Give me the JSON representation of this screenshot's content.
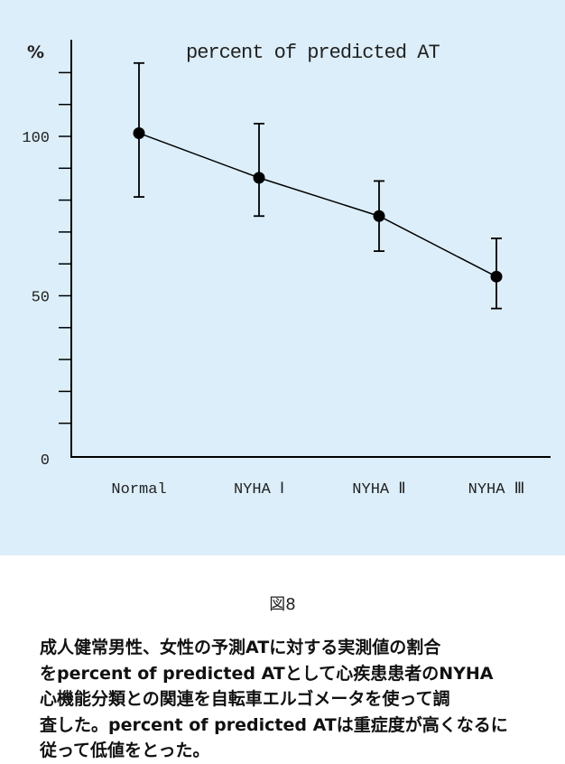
{
  "chart_data": {
    "type": "line",
    "title": "percent of predicted AT",
    "unit_label": "%",
    "categories": [
      "Normal",
      "NYHA Ⅰ",
      "NYHA Ⅱ",
      "NYHA Ⅲ"
    ],
    "values": [
      101,
      87,
      75,
      56
    ],
    "error_upper": [
      123,
      104,
      86,
      68
    ],
    "error_lower": [
      81,
      75,
      64,
      46
    ],
    "ylim": [
      0,
      130
    ],
    "yticks": [
      0,
      50,
      100
    ],
    "ytick_labels": [
      "0",
      "50",
      "100"
    ],
    "minor_ticks": [
      10,
      20,
      30,
      40,
      60,
      70,
      80,
      90,
      110,
      120
    ],
    "grid": false,
    "legend": "none",
    "colors": {
      "background": "#dbeefa",
      "line": "#000000",
      "marker": "#000000"
    }
  },
  "caption": "図8",
  "body_lines": [
    "成人健常男性、女性の予測ATに対する実測値の割合",
    "をpercent of predicted ATとして心疾患患者のNYHA",
    "心機能分類との関連を自転車エルゴメータを使って調",
    "査した。percent of predicted ATは重症度が高くなるに",
    "従って低値をとった。"
  ]
}
